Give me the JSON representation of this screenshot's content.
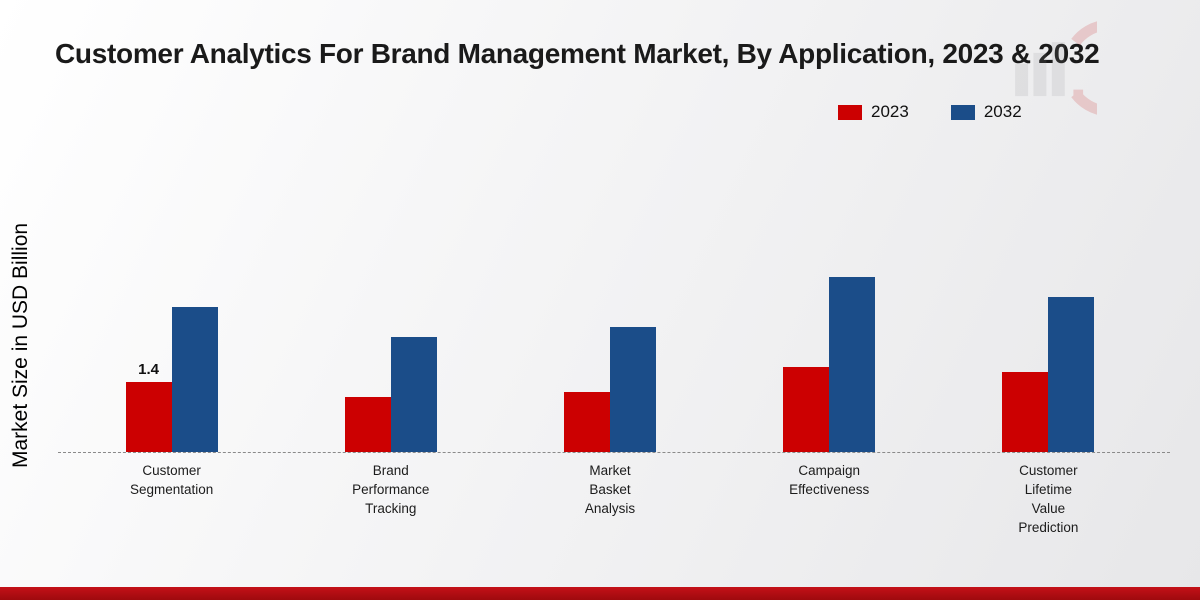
{
  "title": "Customer Analytics For Brand Management Market, By Application, 2023 & 2032",
  "y_axis_label": "Market Size in USD Billion",
  "colors": {
    "series_2023": "#cc0001",
    "series_2032": "#1b4d89",
    "footer_band": "#b90d12",
    "baseline": "#8a8a8a"
  },
  "chart_data": {
    "type": "bar",
    "title": "Customer Analytics For Brand Management Market, By Application, 2023 & 2032",
    "ylabel": "Market Size in USD Billion",
    "xlabel": "",
    "legend_position": "top-right",
    "grid": false,
    "baseline_style": "dashed",
    "categories": [
      "Customer\nSegmentation",
      "Brand\nPerformance\nTracking",
      "Market\nBasket\nAnalysis",
      "Campaign\nEffectiveness",
      "Customer\nLifetime\nValue\nPrediction"
    ],
    "series": [
      {
        "name": "2023",
        "color": "#cc0001",
        "values": [
          1.4,
          1.1,
          1.2,
          1.7,
          1.6
        ]
      },
      {
        "name": "2032",
        "color": "#1b4d89",
        "values": [
          2.9,
          2.3,
          2.5,
          3.5,
          3.1
        ]
      }
    ],
    "value_labels": [
      "1.4",
      "",
      "",
      "",
      ""
    ],
    "ylim": [
      0,
      4
    ]
  }
}
